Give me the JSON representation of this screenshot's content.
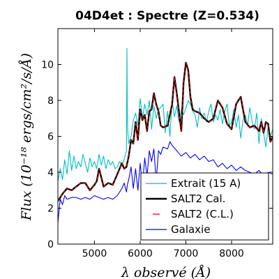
{
  "chart_data": {
    "type": "line",
    "title": "04D4et : Spectre (Z=0.534)",
    "xlabel": "λ observé (Å)",
    "ylabel": "Flux (10⁻¹⁸ ergs/cm²/s/Å)",
    "xlim": [
      4200,
      8900
    ],
    "ylim": [
      0,
      12
    ],
    "xticks": [
      5000,
      6000,
      7000,
      8000
    ],
    "yticks": [
      0,
      2,
      4,
      6,
      8,
      10
    ],
    "grid": false,
    "legend_position": "bottom-right",
    "series": [
      {
        "name": "Extrait (15 A)",
        "color": "#00bfbf",
        "style": "solid",
        "x": [
          4200,
          4250,
          4300,
          4350,
          4400,
          4450,
          4500,
          4550,
          4600,
          4650,
          4700,
          4750,
          4800,
          4850,
          4900,
          4950,
          5000,
          5050,
          5100,
          5150,
          5200,
          5250,
          5300,
          5350,
          5400,
          5450,
          5500,
          5550,
          5600,
          5650,
          5700,
          5710,
          5720,
          5730,
          5750,
          5800,
          5850,
          5900,
          5950,
          6000,
          6050,
          6100,
          6150,
          6200,
          6250,
          6300,
          6350,
          6400,
          6450,
          6500,
          6550,
          6600,
          6650,
          6700,
          6750,
          6800,
          6850,
          6900,
          6950,
          7000,
          7050,
          7100,
          7150,
          7200,
          7250,
          7300,
          7350,
          7400,
          7450,
          7500,
          7550,
          7600,
          7650,
          7700,
          7750,
          7800,
          7850,
          7900,
          7950,
          8000,
          8050,
          8100,
          8150,
          8200,
          8250,
          8300,
          8350,
          8400,
          8450,
          8500,
          8550,
          8600,
          8650,
          8700,
          8750,
          8800,
          8850,
          8900
        ],
        "y": [
          3.5,
          4.2,
          3.6,
          4.7,
          3.9,
          5.2,
          4.1,
          4.9,
          4.2,
          4.6,
          4.3,
          5.0,
          4.5,
          4.0,
          4.8,
          4.3,
          4.6,
          4.2,
          5.0,
          4.4,
          4.9,
          4.2,
          4.7,
          4.4,
          4.6,
          4.2,
          4.3,
          4.6,
          4.4,
          4.7,
          5.2,
          10.9,
          7.0,
          6.2,
          5.6,
          6.0,
          6.9,
          7.3,
          6.6,
          8.1,
          7.0,
          7.8,
          7.2,
          8.0,
          6.4,
          7.7,
          7.0,
          7.5,
          7.6,
          7.8,
          6.2,
          7.4,
          6.0,
          8.0,
          7.1,
          7.7,
          6.8,
          7.5,
          7.2,
          7.6,
          8.0,
          7.8,
          7.4,
          7.2,
          6.5,
          7.6,
          7.0,
          7.3,
          6.8,
          7.4,
          7.8,
          6.8,
          7.2,
          6.9,
          7.5,
          6.7,
          7.4,
          7.8,
          6.6,
          6.8,
          7.5,
          6.5,
          7.2,
          5.9,
          6.9,
          7.2,
          6.6,
          7.6,
          6.8,
          6.4,
          7.3,
          5.6,
          7.0,
          6.2,
          5.4,
          6.5,
          6.0,
          6.4
        ]
      },
      {
        "name": "SALT2 Cal.",
        "color": "#000000",
        "style": "solid",
        "x": [
          4200,
          4300,
          4400,
          4500,
          4600,
          4700,
          4800,
          4900,
          5000,
          5050,
          5100,
          5150,
          5200,
          5300,
          5400,
          5500,
          5550,
          5600,
          5650,
          5700,
          5750,
          5800,
          5850,
          5900,
          5950,
          6000,
          6050,
          6100,
          6150,
          6200,
          6250,
          6300,
          6350,
          6400,
          6450,
          6500,
          6600,
          6700,
          6750,
          6800,
          6900,
          6950,
          7000,
          7050,
          7100,
          7150,
          7200,
          7300,
          7400,
          7500,
          7600,
          7700,
          7800,
          7900,
          8000,
          8100,
          8200,
          8300,
          8400,
          8500,
          8600,
          8650,
          8700,
          8750,
          8800,
          8850,
          8900
        ],
        "y": [
          2.4,
          2.8,
          3.1,
          3.0,
          3.2,
          3.4,
          3.4,
          3.0,
          3.3,
          3.5,
          4.2,
          3.7,
          3.2,
          3.4,
          3.3,
          3.9,
          4.2,
          4.5,
          4.2,
          4.3,
          4.9,
          5.8,
          5.6,
          6.8,
          5.8,
          7.5,
          6.9,
          7.2,
          6.3,
          7.4,
          7.5,
          8.4,
          7.8,
          7.4,
          6.6,
          6.5,
          6.6,
          7.8,
          9.3,
          8.4,
          6.3,
          9.0,
          10.1,
          9.7,
          8.2,
          7.5,
          7.4,
          7.3,
          7.0,
          6.8,
          7.0,
          8.0,
          7.6,
          6.7,
          6.4,
          7.8,
          8.2,
          6.8,
          6.5,
          6.6,
          6.3,
          6.8,
          6.2,
          6.8,
          6.7,
          5.7,
          6.0
        ]
      },
      {
        "name": "SALT2 (C.L.)",
        "color": "#ff0000",
        "style": "dashed",
        "x": [
          4200,
          4300,
          4400,
          4500,
          4600,
          4700,
          4800,
          4900,
          5000,
          5050,
          5100,
          5150,
          5200,
          5300,
          5400,
          5500,
          5550,
          5600,
          5650,
          5700,
          5750,
          5800,
          5850,
          5900,
          5950,
          6000,
          6050,
          6100,
          6150,
          6200,
          6250,
          6300,
          6350,
          6400,
          6450,
          6500,
          6600,
          6700,
          6750,
          6800,
          6900,
          6950,
          7000,
          7050,
          7100,
          7150,
          7200,
          7300,
          7400,
          7500,
          7600,
          7700,
          7800,
          7900,
          8000,
          8100,
          8200,
          8300,
          8400,
          8500,
          8600,
          8650,
          8700,
          8750,
          8800,
          8850,
          8900
        ],
        "y": [
          2.4,
          2.8,
          3.1,
          3.0,
          3.2,
          3.4,
          3.4,
          3.0,
          3.3,
          3.5,
          4.2,
          3.7,
          3.2,
          3.4,
          3.3,
          3.9,
          4.2,
          4.5,
          4.2,
          4.3,
          4.9,
          5.8,
          5.6,
          6.8,
          5.8,
          7.5,
          6.9,
          7.2,
          6.3,
          7.4,
          7.5,
          8.4,
          7.8,
          7.4,
          6.6,
          6.5,
          6.6,
          7.8,
          9.3,
          8.4,
          6.3,
          9.0,
          10.1,
          9.7,
          8.2,
          7.5,
          7.4,
          7.3,
          7.0,
          6.8,
          7.0,
          8.0,
          7.6,
          6.7,
          6.4,
          7.8,
          8.2,
          6.8,
          6.5,
          6.6,
          6.3,
          6.8,
          6.2,
          6.8,
          6.7,
          5.7,
          6.0
        ]
      },
      {
        "name": "Galaxie",
        "color": "#0000ff",
        "style": "solid",
        "x": [
          4200,
          4250,
          4300,
          4350,
          4400,
          4500,
          4600,
          4700,
          4800,
          4900,
          5000,
          5100,
          5200,
          5300,
          5400,
          5500,
          5600,
          5650,
          5700,
          5720,
          5750,
          5800,
          5850,
          5900,
          5950,
          6000,
          6050,
          6100,
          6150,
          6200,
          6250,
          6300,
          6350,
          6400,
          6450,
          6500,
          6600,
          6650,
          6700,
          6800,
          6900,
          7000,
          7100,
          7200,
          7300,
          7400,
          7500,
          7600,
          7700,
          7800,
          7900,
          8000,
          8100,
          8200,
          8300,
          8400,
          8500,
          8600,
          8700,
          8800,
          8900
        ],
        "y": [
          1.2,
          2.5,
          2.2,
          2.7,
          2.5,
          2.6,
          2.6,
          2.5,
          2.6,
          2.5,
          2.7,
          2.6,
          2.5,
          2.6,
          2.5,
          2.7,
          3.1,
          3.4,
          2.9,
          3.3,
          3.6,
          4.3,
          3.1,
          4.2,
          3.0,
          4.5,
          3.2,
          4.8,
          3.8,
          5.2,
          4.6,
          5.3,
          3.5,
          5.2,
          5.0,
          5.4,
          5.3,
          5.7,
          5.5,
          5.2,
          4.9,
          5.1,
          4.8,
          5.0,
          4.7,
          4.9,
          4.6,
          4.7,
          4.3,
          4.5,
          4.2,
          4.4,
          4.1,
          4.3,
          4.1,
          4.0,
          3.9,
          4.1,
          3.8,
          4.0,
          3.9
        ]
      }
    ]
  }
}
